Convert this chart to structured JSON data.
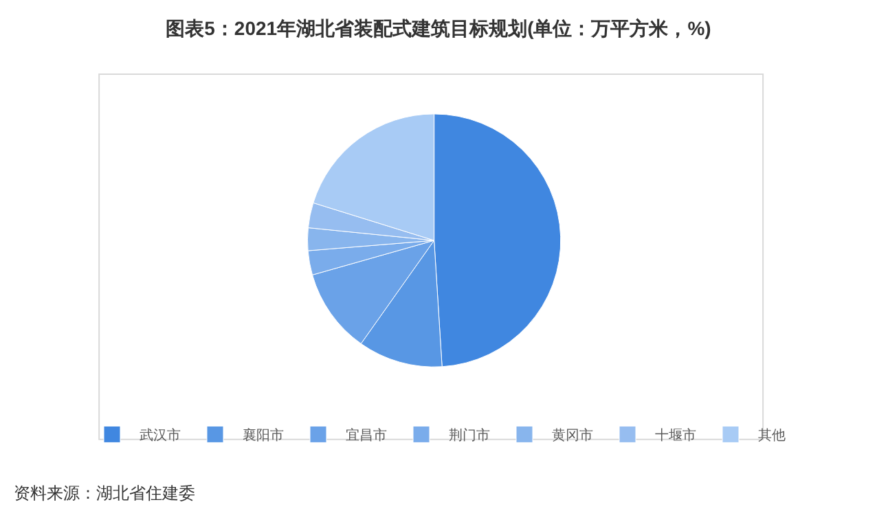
{
  "chart_data": {
    "type": "pie",
    "title": "图表5：2021年湖北省装配式建筑目标规划(单位：万平方米，%)",
    "categories": [
      "武汉市",
      "襄阳市",
      "宜昌市",
      "荆门市",
      "黄冈市",
      "十堰市",
      "其他"
    ],
    "values": [
      49,
      10.8,
      10.8,
      3.1,
      2.9,
      3.2,
      20.2
    ],
    "colors": [
      "#4087e0",
      "#5897e4",
      "#6aa2e8",
      "#7aaceb",
      "#88b5ed",
      "#96bdf0",
      "#a8cbf5"
    ],
    "legend": "bottom",
    "annotations": [
      "资料来源：湖北省住建委"
    ]
  }
}
